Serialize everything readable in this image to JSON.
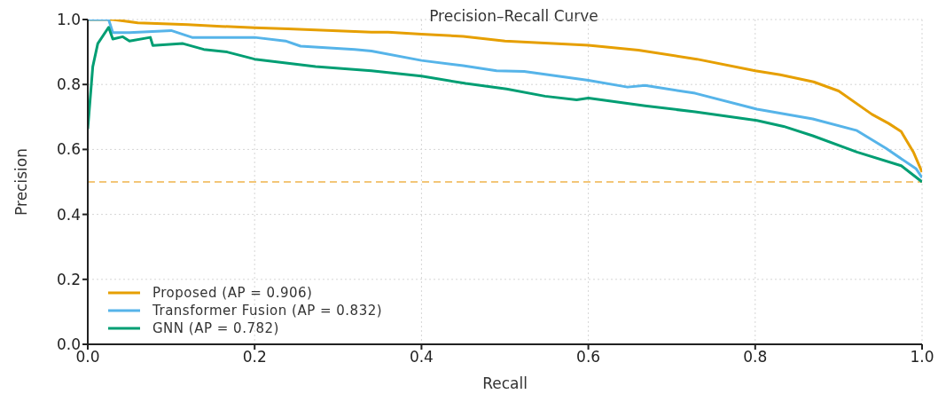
{
  "chart_data": {
    "type": "line",
    "title": "Precision–Recall Curve",
    "xlabel": "Recall",
    "ylabel": "Precision",
    "xlim": [
      0,
      1
    ],
    "ylim": [
      0,
      1
    ],
    "xticks": [
      {
        "value": 0,
        "label": "0.0"
      },
      {
        "value": 0.2,
        "label": "0.2"
      },
      {
        "value": 0.4,
        "label": "0.4"
      },
      {
        "value": 0.6,
        "label": "0.6"
      },
      {
        "value": 0.8,
        "label": "0.8"
      },
      {
        "value": 1,
        "label": "1.0"
      }
    ],
    "yticks": [
      {
        "value": 0,
        "label": "0.0"
      },
      {
        "value": 0.2,
        "label": "0.2"
      },
      {
        "value": 0.4,
        "label": "0.4"
      },
      {
        "value": 0.6,
        "label": "0.6"
      },
      {
        "value": 0.8,
        "label": "0.8"
      },
      {
        "value": 1,
        "label": "1.0"
      }
    ],
    "grid": true,
    "legend": "bottom left",
    "line_style": "solid",
    "marker": "none",
    "ref_lines": [
      {
        "axis": "y",
        "value": 0.5,
        "label": null,
        "color": "#f0b44c",
        "line_style": "dashed"
      }
    ],
    "series": [
      {
        "name": "Proposed (AP = 0.906)",
        "color": "#e69f00",
        "x": [
          0,
          0.03,
          0.06,
          0.12,
          0.16,
          0.2,
          0.24,
          0.34,
          0.36,
          0.4,
          0.45,
          0.5,
          0.6,
          0.66,
          0.73,
          0.8,
          0.83,
          0.87,
          0.9,
          0.94,
          0.96,
          0.975,
          0.99,
          1.0
        ],
        "values": [
          1.0,
          1.0,
          0.99,
          0.984,
          0.979,
          0.975,
          0.971,
          0.961,
          0.961,
          0.955,
          0.948,
          0.934,
          0.921,
          0.906,
          0.878,
          0.842,
          0.83,
          0.808,
          0.78,
          0.708,
          0.68,
          0.655,
          0.59,
          0.53
        ]
      },
      {
        "name": "Transformer Fusion (AP = 0.832)",
        "color": "#56b4e9",
        "x": [
          0,
          0.025,
          0.03,
          0.05,
          0.1,
          0.125,
          0.2,
          0.237,
          0.255,
          0.32,
          0.34,
          0.4,
          0.45,
          0.49,
          0.523,
          0.6,
          0.647,
          0.668,
          0.728,
          0.802,
          0.869,
          0.922,
          0.957,
          0.993,
          1.0
        ],
        "values": [
          1.0,
          1.0,
          0.96,
          0.96,
          0.966,
          0.945,
          0.945,
          0.934,
          0.918,
          0.908,
          0.903,
          0.874,
          0.858,
          0.842,
          0.84,
          0.813,
          0.792,
          0.797,
          0.773,
          0.724,
          0.694,
          0.658,
          0.603,
          0.54,
          0.513
        ]
      },
      {
        "name": "GNN (AP = 0.782)",
        "color": "#009e73",
        "x": [
          0,
          0.006,
          0.012,
          0.025,
          0.03,
          0.042,
          0.05,
          0.075,
          0.078,
          0.114,
          0.139,
          0.167,
          0.2,
          0.273,
          0.34,
          0.4,
          0.453,
          0.502,
          0.548,
          0.586,
          0.6,
          0.668,
          0.728,
          0.802,
          0.834,
          0.869,
          0.922,
          0.975,
          1.0
        ],
        "values": [
          0.663,
          0.855,
          0.926,
          0.976,
          0.94,
          0.947,
          0.934,
          0.945,
          0.92,
          0.926,
          0.908,
          0.9,
          0.878,
          0.855,
          0.842,
          0.826,
          0.803,
          0.786,
          0.764,
          0.753,
          0.758,
          0.734,
          0.716,
          0.689,
          0.671,
          0.642,
          0.592,
          0.55,
          0.5
        ]
      }
    ]
  }
}
